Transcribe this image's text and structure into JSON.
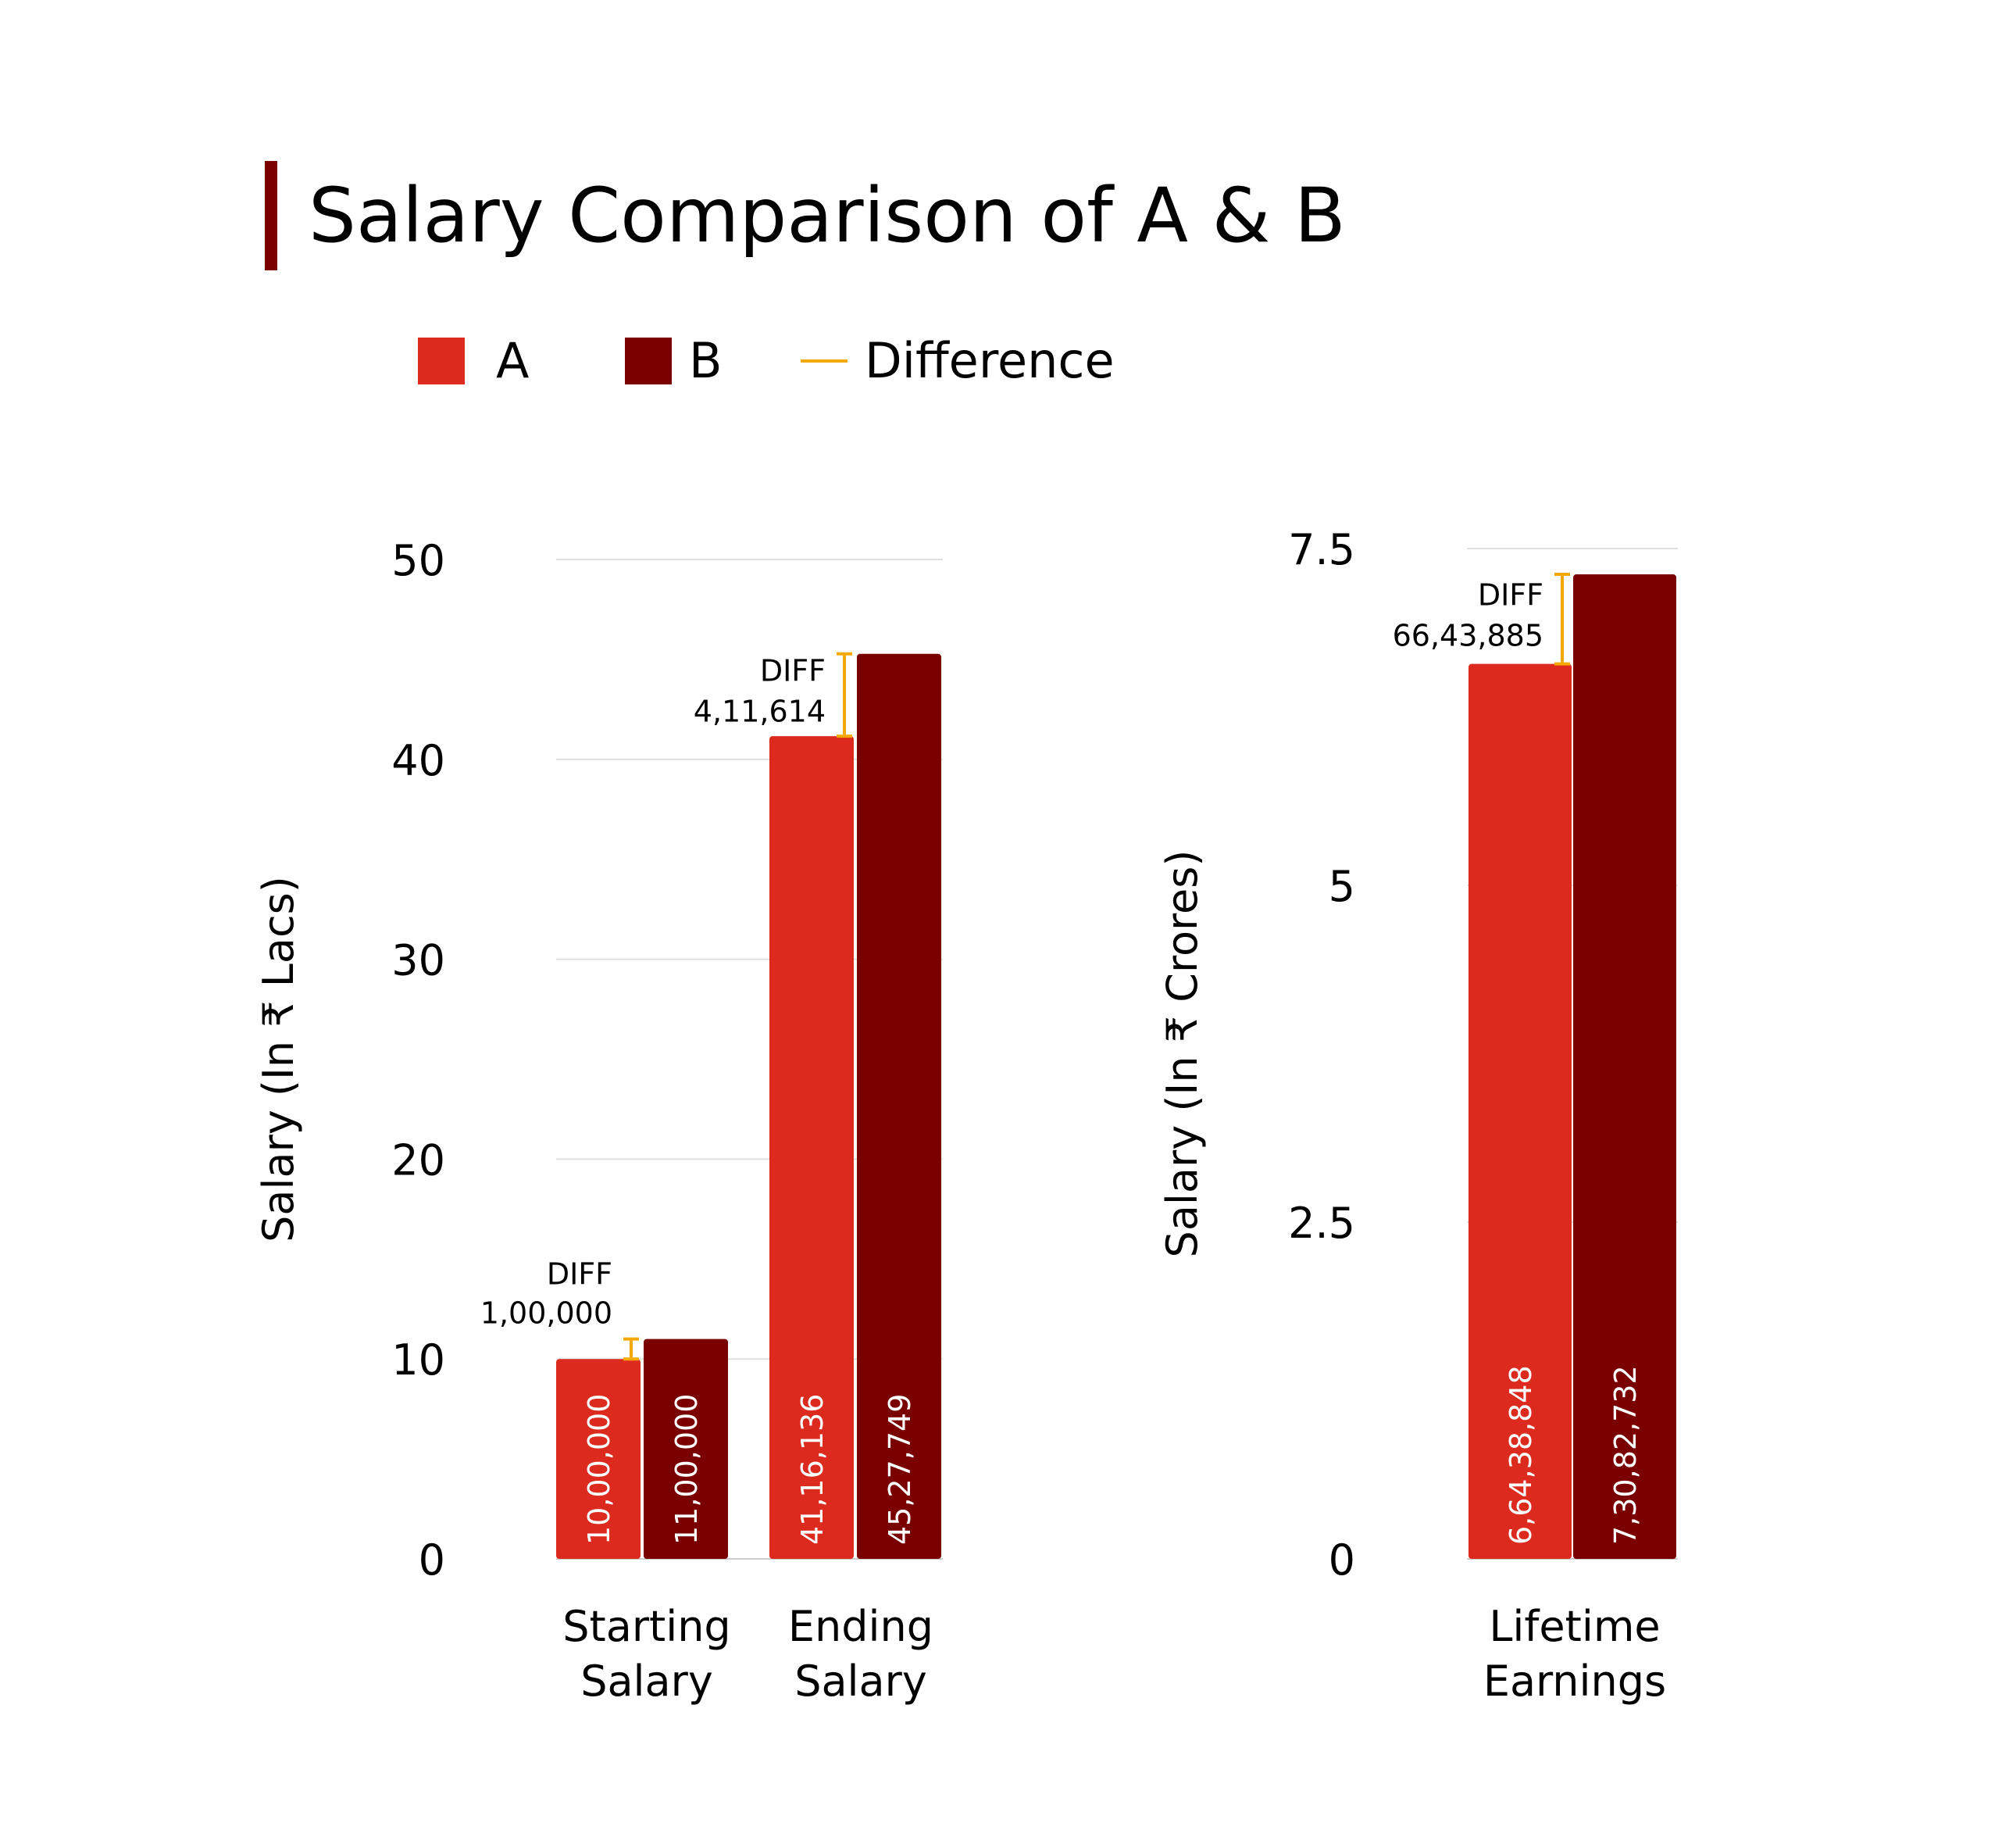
{
  "title": "Salary Comparison of A & B",
  "colors": {
    "A": "#dc2a1e",
    "B": "#7a0000",
    "difference": "#f5a800",
    "grid": "#e0e0e0",
    "title_accent": "#7a0000"
  },
  "legend": [
    {
      "label": "A",
      "kind": "swatch",
      "color": "#dc2a1e"
    },
    {
      "label": "B",
      "kind": "swatch",
      "color": "#7a0000"
    },
    {
      "label": "Difference",
      "kind": "line",
      "color": "#f5a800"
    }
  ],
  "chart_data": [
    {
      "type": "bar",
      "ylabel": "Salary (In ₹ Lacs)",
      "ylim": [
        0,
        50
      ],
      "yticks": [
        "0",
        "10",
        "20",
        "30",
        "40",
        "50"
      ],
      "categories": [
        [
          "Starting",
          "Salary"
        ],
        [
          "Ending",
          "Salary"
        ]
      ],
      "series": [
        {
          "name": "A",
          "values": [
            10.0,
            41.16136
          ],
          "labels": [
            "10,00,000",
            "41,16,136"
          ]
        },
        {
          "name": "B",
          "values": [
            11.0,
            45.27749
          ],
          "labels": [
            "11,00,000",
            "45,27,749"
          ]
        }
      ],
      "differences": [
        {
          "label": "DIFF",
          "value": "1,00,000"
        },
        {
          "label": "DIFF",
          "value": "4,11,614"
        }
      ],
      "grid": true,
      "legend": "top"
    },
    {
      "type": "bar",
      "ylabel": "Salary (In ₹ Crores)",
      "ylim": [
        0,
        7.5
      ],
      "yticks": [
        "0",
        "2.5",
        "5",
        "7.5"
      ],
      "categories": [
        [
          "Lifetime",
          "Earnings"
        ]
      ],
      "series": [
        {
          "name": "A",
          "values": [
            6.6438848
          ],
          "labels": [
            "6,64,38,848"
          ]
        },
        {
          "name": "B",
          "values": [
            7.3082732
          ],
          "labels": [
            "7,30,82,732"
          ]
        }
      ],
      "differences": [
        {
          "label": "DIFF",
          "value": "66,43,885"
        }
      ],
      "grid": true,
      "legend": "top"
    }
  ]
}
